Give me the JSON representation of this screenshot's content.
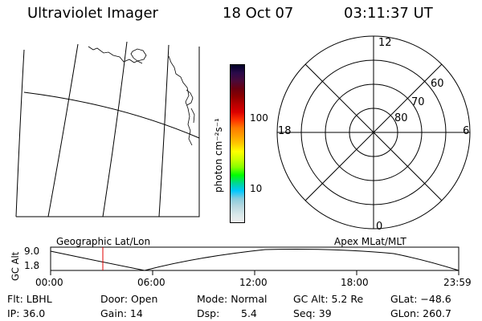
{
  "header": {
    "instrument": "Ultraviolet Imager",
    "date": "18 Oct 07",
    "time": "03:11:37 UT"
  },
  "colorbar": {
    "unit_label": "photon cm⁻²s⁻¹",
    "ticks": [
      "100",
      "10"
    ],
    "colors": [
      "#000028",
      "#2a0a4a",
      "#4a0a3a",
      "#6a0010",
      "#8c0000",
      "#b80000",
      "#dc0000",
      "#ff3300",
      "#ff7a00",
      "#ff9f00",
      "#ffc800",
      "#ffff00",
      "#ccff00",
      "#88ff00",
      "#00ff00",
      "#00d890",
      "#00c8ff",
      "#88ccdd",
      "#b8d8e0",
      "#d8e8ea",
      "#eeeeee"
    ]
  },
  "polar": {
    "mlt_labels": [
      "12",
      "6",
      "0",
      "18"
    ],
    "lat_labels": [
      "60",
      "70",
      "80"
    ]
  },
  "strip": {
    "left_title": "Geographic Lat/Lon",
    "right_title": "Apex MLat/MLT",
    "axis_label": "GC Alt",
    "y_ticks": [
      "9.0",
      "1.8"
    ],
    "x_ticks": [
      "00:00",
      "06:00",
      "12:00",
      "18:00",
      "23:59"
    ],
    "line_color": "#e00000"
  },
  "status": {
    "row1": {
      "flt": "Flt: LBHL",
      "door": "Door: Open",
      "mode": "Mode: Normal",
      "gcalt": "GC Alt: 5.2 Re",
      "glat": "GLat: −48.6"
    },
    "row2": {
      "ip": "IP: 36.0",
      "gain": "Gain: 14",
      "dsp_label": "Dsp:",
      "dsp_value": "5.4",
      "seq": "Seq: 39",
      "glon": "GLon: 260.7"
    }
  }
}
